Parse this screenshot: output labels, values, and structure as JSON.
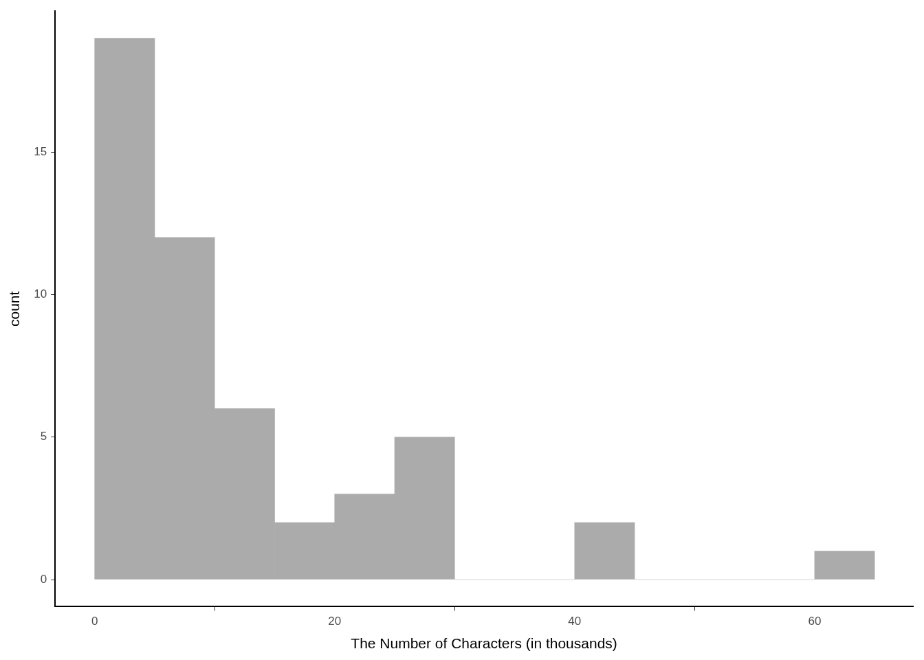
{
  "chart_data": {
    "type": "histogram",
    "x_label": "The Number of Characters (in thousands)",
    "y_label": "count",
    "bins": [
      0,
      5,
      10,
      15,
      20,
      25,
      30,
      35,
      40,
      45,
      50,
      55,
      60,
      65
    ],
    "values": [
      19,
      12,
      6,
      2,
      3,
      5,
      0,
      0,
      2,
      0,
      0,
      0,
      1
    ],
    "color": "#ababab",
    "xlim": [
      -3.3,
      68.2
    ],
    "xticks": [
      0,
      20,
      40,
      60
    ],
    "ylim": [
      -0.95,
      19.95
    ],
    "yticks": [
      0,
      5,
      10,
      15
    ],
    "grid": false
  }
}
